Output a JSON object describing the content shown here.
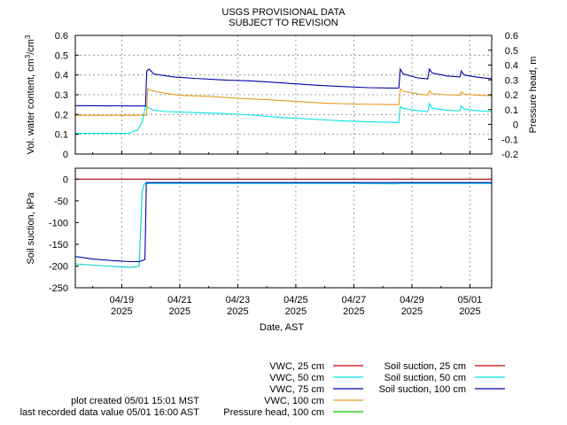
{
  "title_line1": "USGS PROVISIONAL DATA",
  "title_line2": "SUBJECT TO REVISION",
  "top_ylabel_left": "Vol. water content, cm",
  "top_ylabel_left_sup1": "3",
  "top_ylabel_left_mid": "/cm",
  "top_ylabel_left_sup2": "3",
  "top_ylabel_right": "Pressure head, m",
  "bottom_ylabel": "Soil suction, kPa",
  "xlabel": "Date, AST",
  "footer": {
    "plot_created": "plot created 05/01 15:01 MST",
    "last_recorded": "last recorded data value 05/01 16:00 AST"
  },
  "chart_data": {
    "type": "line",
    "time_unit": "days",
    "x_range": [
      17.4,
      31.75
    ],
    "x_ticks": [
      {
        "x": 19,
        "label": "04/19",
        "year": "2025"
      },
      {
        "x": 21,
        "label": "04/21",
        "year": "2025"
      },
      {
        "x": 23,
        "label": "04/23",
        "year": "2025"
      },
      {
        "x": 25,
        "label": "04/25",
        "year": "2025"
      },
      {
        "x": 27,
        "label": "04/27",
        "year": "2025"
      },
      {
        "x": 29,
        "label": "04/29",
        "year": "2025"
      },
      {
        "x": 31,
        "label": "05/01",
        "year": "2025"
      }
    ],
    "top": {
      "ylim": [
        0,
        0.6
      ],
      "yticks": [
        "0",
        "0.1",
        "0.2",
        "0.3",
        "0.4",
        "0.5",
        "0.6"
      ],
      "y2lim": [
        -0.2,
        0.6
      ],
      "y2ticks": [
        "-0.2",
        "-0.1",
        "0",
        "0.1",
        "0.2",
        "0.3",
        "0.4",
        "0.5",
        "0.6"
      ],
      "series": [
        {
          "name": "VWC, 50 cm",
          "color": "#00e5e5",
          "points": [
            [
              17.4,
              0.105
            ],
            [
              19.2,
              0.105
            ],
            [
              19.55,
              0.12
            ],
            [
              19.7,
              0.16
            ],
            [
              19.78,
              0.215
            ],
            [
              19.82,
              0.245
            ],
            [
              19.9,
              0.235
            ],
            [
              20.1,
              0.222
            ],
            [
              20.5,
              0.215
            ],
            [
              21.5,
              0.21
            ],
            [
              22.5,
              0.205
            ],
            [
              23.5,
              0.197
            ],
            [
              24.5,
              0.185
            ],
            [
              25.5,
              0.177
            ],
            [
              26.5,
              0.169
            ],
            [
              27.5,
              0.163
            ],
            [
              28.55,
              0.16
            ],
            [
              28.6,
              0.24
            ],
            [
              28.7,
              0.23
            ],
            [
              29.2,
              0.22
            ],
            [
              29.55,
              0.215
            ],
            [
              29.6,
              0.255
            ],
            [
              29.7,
              0.232
            ],
            [
              30.2,
              0.222
            ],
            [
              30.65,
              0.218
            ],
            [
              30.7,
              0.245
            ],
            [
              30.8,
              0.228
            ],
            [
              31.2,
              0.22
            ],
            [
              31.75,
              0.215
            ]
          ]
        },
        {
          "name": "VWC, 75 cm",
          "color": "#0000aa",
          "points": [
            [
              17.4,
              0.245
            ],
            [
              19.82,
              0.243
            ],
            [
              19.86,
              0.42
            ],
            [
              19.95,
              0.43
            ],
            [
              20.1,
              0.405
            ],
            [
              20.4,
              0.398
            ],
            [
              20.8,
              0.39
            ],
            [
              21.5,
              0.383
            ],
            [
              22.5,
              0.375
            ],
            [
              23.5,
              0.37
            ],
            [
              24.5,
              0.36
            ],
            [
              25.5,
              0.35
            ],
            [
              26.5,
              0.342
            ],
            [
              27.5,
              0.336
            ],
            [
              28.5,
              0.333
            ],
            [
              28.55,
              0.335
            ],
            [
              28.6,
              0.43
            ],
            [
              28.7,
              0.405
            ],
            [
              29.2,
              0.385
            ],
            [
              29.55,
              0.38
            ],
            [
              29.6,
              0.43
            ],
            [
              29.7,
              0.41
            ],
            [
              30.2,
              0.395
            ],
            [
              30.65,
              0.39
            ],
            [
              30.7,
              0.42
            ],
            [
              30.8,
              0.4
            ],
            [
              31.2,
              0.39
            ],
            [
              31.75,
              0.38
            ]
          ]
        },
        {
          "name": "VWC, 100 cm",
          "color": "#e39b1c",
          "points": [
            [
              17.4,
              0.196
            ],
            [
              19.85,
              0.196
            ],
            [
              19.9,
              0.33
            ],
            [
              20.05,
              0.32
            ],
            [
              20.4,
              0.31
            ],
            [
              21.0,
              0.297
            ],
            [
              22.0,
              0.292
            ],
            [
              23.0,
              0.282
            ],
            [
              24.0,
              0.275
            ],
            [
              25.0,
              0.266
            ],
            [
              26.0,
              0.258
            ],
            [
              27.0,
              0.253
            ],
            [
              28.5,
              0.25
            ],
            [
              28.55,
              0.25
            ],
            [
              28.6,
              0.33
            ],
            [
              28.7,
              0.318
            ],
            [
              29.2,
              0.305
            ],
            [
              29.55,
              0.298
            ],
            [
              29.6,
              0.32
            ],
            [
              29.7,
              0.305
            ],
            [
              30.2,
              0.3
            ],
            [
              30.65,
              0.298
            ],
            [
              30.7,
              0.315
            ],
            [
              30.8,
              0.303
            ],
            [
              31.2,
              0.298
            ],
            [
              31.75,
              0.295
            ]
          ]
        }
      ]
    },
    "bottom": {
      "ylim": [
        -250,
        25
      ],
      "yticks": [
        "-250",
        "-200",
        "-150",
        "-100",
        "-50",
        "0"
      ],
      "series": [
        {
          "name": "Soil suction, 25 cm",
          "color": "#aa0000",
          "points": [
            [
              17.4,
              0
            ],
            [
              31.75,
              0
            ]
          ]
        },
        {
          "name": "Soil suction, 50 cm",
          "color": "#00d0d0",
          "points": [
            [
              17.4,
              -195
            ],
            [
              18.5,
              -200
            ],
            [
              19.3,
              -203
            ],
            [
              19.6,
              -201
            ],
            [
              19.7,
              -30
            ],
            [
              19.78,
              -10
            ],
            [
              27.0,
              -10
            ],
            [
              28.5,
              -11
            ],
            [
              28.55,
              -10
            ],
            [
              31.75,
              -10
            ]
          ]
        },
        {
          "name": "Soil suction, 100 cm",
          "color": "#0000aa",
          "points": [
            [
              17.4,
              -178
            ],
            [
              18.0,
              -184
            ],
            [
              18.8,
              -188
            ],
            [
              19.3,
              -190
            ],
            [
              19.6,
              -190
            ],
            [
              19.8,
              -185
            ],
            [
              19.85,
              -8
            ],
            [
              31.75,
              -8
            ]
          ]
        }
      ]
    },
    "legend": {
      "placement": "bottom",
      "left_col": [
        {
          "label": "VWC, 25 cm",
          "color": "#cc0000"
        },
        {
          "label": "VWC, 50 cm",
          "color": "#00e5e5"
        },
        {
          "label": "VWC, 75 cm",
          "color": "#0000aa"
        },
        {
          "label": "VWC, 100 cm",
          "color": "#e39b1c"
        },
        {
          "label": "Pressure head, 100 cm",
          "color": "#00c800"
        }
      ],
      "right_col": [
        {
          "label": "Soil suction, 25 cm",
          "color": "#cc0000"
        },
        {
          "label": "Soil suction, 50 cm",
          "color": "#00e5e5"
        },
        {
          "label": "Soil suction, 100 cm",
          "color": "#0000aa"
        }
      ]
    }
  }
}
